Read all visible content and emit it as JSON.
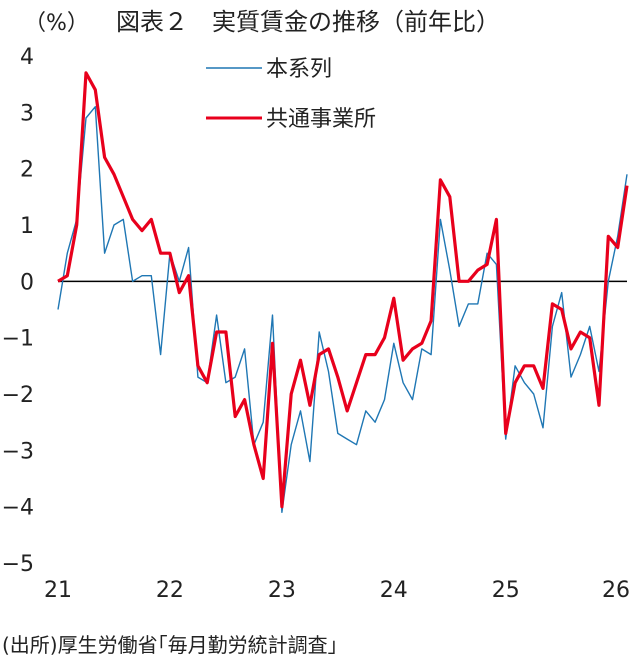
{
  "chart_data": {
    "type": "line",
    "title": "図表２　実質賃金の推移（前年比）",
    "y_unit": "（%）",
    "source": "(出所)厚生労働省｢毎月勤労統計調査｣",
    "ylim": [
      -5,
      4
    ],
    "y_ticks": [
      "4",
      "3",
      "2",
      "1",
      "0",
      "−1",
      "−2",
      "−3",
      "−4",
      "−5"
    ],
    "y_tick_values": [
      4,
      3,
      2,
      1,
      0,
      -1,
      -2,
      -3,
      -4,
      -5
    ],
    "x_ticks": [
      "21",
      "22",
      "23",
      "24",
      "25",
      "26"
    ],
    "x_tick_index": [
      0,
      12,
      24,
      36,
      48,
      60
    ],
    "legend_position": "top-center",
    "zero_line": true,
    "grid": false,
    "series": [
      {
        "name": "本系列",
        "color": "#1f77b4",
        "values": [
          -0.5,
          0.5,
          1.1,
          2.9,
          3.1,
          0.5,
          1.0,
          1.1,
          0.0,
          0.1,
          0.1,
          -1.3,
          0.5,
          0.0,
          0.6,
          -1.7,
          -1.8,
          -0.6,
          -1.8,
          -1.7,
          -1.2,
          -2.9,
          -2.5,
          -0.6,
          -4.1,
          -2.9,
          -2.3,
          -3.2,
          -0.9,
          -1.6,
          -2.7,
          -2.8,
          -2.9,
          -2.3,
          -2.5,
          -2.1,
          -1.1,
          -1.8,
          -2.1,
          -1.2,
          -1.3,
          1.1,
          0.2,
          -0.8,
          -0.4,
          -0.4,
          0.5,
          0.3,
          -2.8,
          -1.5,
          -1.8,
          -2.0,
          -2.6,
          -0.8,
          -0.2,
          -1.7,
          -1.3,
          -0.8,
          -1.6,
          0.0,
          0.8,
          1.9
        ]
      },
      {
        "name": "共通事業所",
        "color": "#e8001c",
        "values": [
          0.0,
          0.1,
          1.0,
          3.7,
          3.4,
          2.2,
          1.9,
          1.5,
          1.1,
          0.9,
          1.1,
          0.5,
          0.5,
          -0.2,
          0.1,
          -1.5,
          -1.8,
          -0.9,
          -0.9,
          -2.4,
          -2.1,
          -2.9,
          -3.5,
          -1.1,
          -4.0,
          -2.0,
          -1.4,
          -2.2,
          -1.3,
          -1.2,
          -1.7,
          -2.3,
          -1.8,
          -1.3,
          -1.3,
          -1.0,
          -0.3,
          -1.4,
          -1.2,
          -1.1,
          -0.7,
          1.8,
          1.5,
          0.0,
          0.0,
          0.2,
          0.3,
          1.1,
          -2.7,
          -1.8,
          -1.5,
          -1.5,
          -1.9,
          -0.4,
          -0.5,
          -1.2,
          -0.9,
          -1.0,
          -2.2,
          0.8,
          0.6,
          1.7
        ]
      }
    ]
  }
}
